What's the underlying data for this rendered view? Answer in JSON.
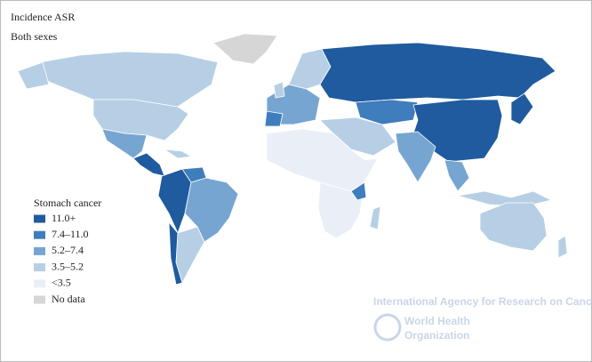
{
  "header": {
    "title": "Incidence ASR",
    "subtitle": "Both sexes"
  },
  "legend": {
    "title": "Stomach cancer",
    "items": [
      {
        "label": "11.0+",
        "color": "#1f5b9e"
      },
      {
        "label": "7.4–11.0",
        "color": "#3f7dbd"
      },
      {
        "label": "5.2–7.4",
        "color": "#77a5d1"
      },
      {
        "label": "3.5–5.2",
        "color": "#b6cfe5"
      },
      {
        "label": "<3.5",
        "color": "#eaeff7"
      },
      {
        "label": "No data",
        "color": "#d6d6d6"
      }
    ]
  },
  "watermark": {
    "agency": "International Agency for Research on Cancer",
    "who": [
      "World Health",
      "Organization"
    ]
  }
}
